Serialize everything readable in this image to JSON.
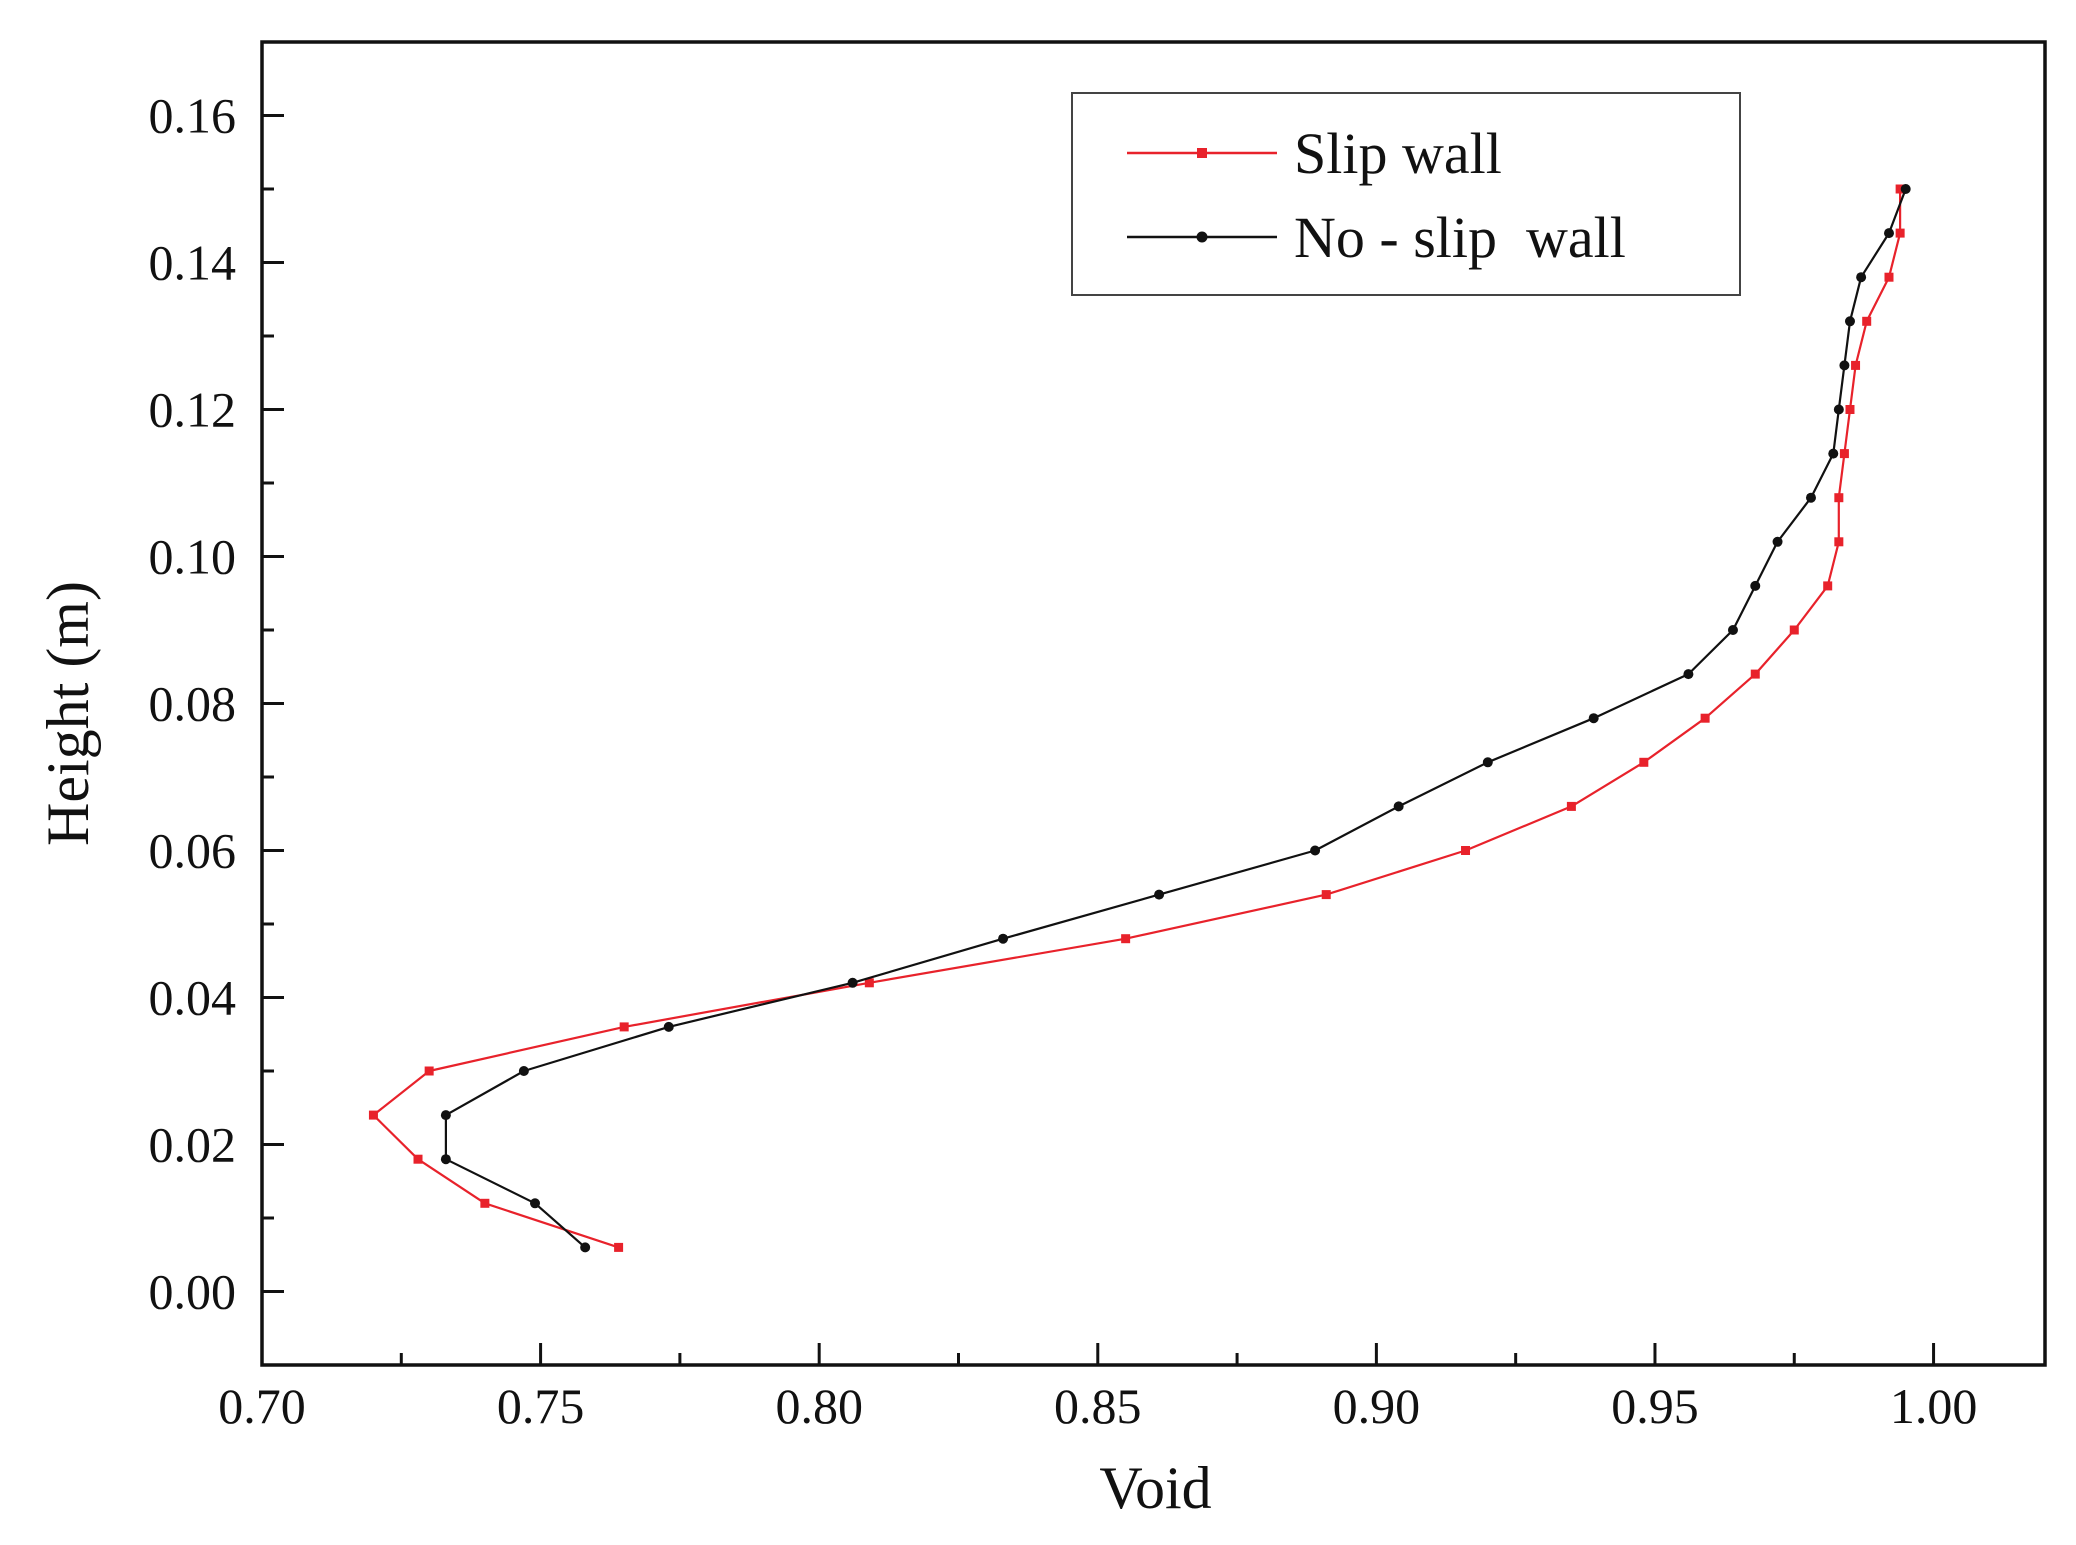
{
  "chart_data": {
    "type": "line",
    "title": "",
    "xlabel": "Void",
    "ylabel": "Height (m)",
    "xlim": [
      0.7,
      1.02
    ],
    "ylim": [
      -0.01,
      0.17
    ],
    "xticks": [
      0.7,
      0.75,
      0.8,
      0.85,
      0.9,
      0.95,
      1.0
    ],
    "xtick_labels": [
      "0.70",
      "0.75",
      "0.80",
      "0.85",
      "0.90",
      "0.95",
      "1.00"
    ],
    "yticks": [
      0.0,
      0.02,
      0.04,
      0.06,
      0.08,
      0.1,
      0.12,
      0.14,
      0.16
    ],
    "ytick_labels": [
      "0.00",
      "0.02",
      "0.04",
      "0.06",
      "0.08",
      "0.10",
      "0.12",
      "0.14",
      "0.16"
    ],
    "grid": false,
    "legend_position": "top-right",
    "series": [
      {
        "name": "Slip wall",
        "color": "#e8222b",
        "marker": "square",
        "points": [
          {
            "x": 0.764,
            "y": 0.006
          },
          {
            "x": 0.74,
            "y": 0.012
          },
          {
            "x": 0.728,
            "y": 0.018
          },
          {
            "x": 0.72,
            "y": 0.024
          },
          {
            "x": 0.73,
            "y": 0.03
          },
          {
            "x": 0.765,
            "y": 0.036
          },
          {
            "x": 0.809,
            "y": 0.042
          },
          {
            "x": 0.855,
            "y": 0.048
          },
          {
            "x": 0.891,
            "y": 0.054
          },
          {
            "x": 0.916,
            "y": 0.06
          },
          {
            "x": 0.935,
            "y": 0.066
          },
          {
            "x": 0.948,
            "y": 0.072
          },
          {
            "x": 0.959,
            "y": 0.078
          },
          {
            "x": 0.968,
            "y": 0.084
          },
          {
            "x": 0.975,
            "y": 0.09
          },
          {
            "x": 0.981,
            "y": 0.096
          },
          {
            "x": 0.983,
            "y": 0.102
          },
          {
            "x": 0.983,
            "y": 0.108
          },
          {
            "x": 0.984,
            "y": 0.114
          },
          {
            "x": 0.985,
            "y": 0.12
          },
          {
            "x": 0.986,
            "y": 0.126
          },
          {
            "x": 0.988,
            "y": 0.132
          },
          {
            "x": 0.992,
            "y": 0.138
          },
          {
            "x": 0.994,
            "y": 0.144
          },
          {
            "x": 0.994,
            "y": 0.15
          }
        ]
      },
      {
        "name": "No - slip  wall",
        "color": "#111111",
        "marker": "circle",
        "points": [
          {
            "x": 0.758,
            "y": 0.006
          },
          {
            "x": 0.749,
            "y": 0.012
          },
          {
            "x": 0.733,
            "y": 0.018
          },
          {
            "x": 0.733,
            "y": 0.024
          },
          {
            "x": 0.747,
            "y": 0.03
          },
          {
            "x": 0.773,
            "y": 0.036
          },
          {
            "x": 0.806,
            "y": 0.042
          },
          {
            "x": 0.833,
            "y": 0.048
          },
          {
            "x": 0.861,
            "y": 0.054
          },
          {
            "x": 0.889,
            "y": 0.06
          },
          {
            "x": 0.904,
            "y": 0.066
          },
          {
            "x": 0.92,
            "y": 0.072
          },
          {
            "x": 0.939,
            "y": 0.078
          },
          {
            "x": 0.956,
            "y": 0.084
          },
          {
            "x": 0.964,
            "y": 0.09
          },
          {
            "x": 0.968,
            "y": 0.096
          },
          {
            "x": 0.972,
            "y": 0.102
          },
          {
            "x": 0.978,
            "y": 0.108
          },
          {
            "x": 0.982,
            "y": 0.114
          },
          {
            "x": 0.983,
            "y": 0.12
          },
          {
            "x": 0.984,
            "y": 0.126
          },
          {
            "x": 0.985,
            "y": 0.132
          },
          {
            "x": 0.987,
            "y": 0.138
          },
          {
            "x": 0.992,
            "y": 0.144
          },
          {
            "x": 0.995,
            "y": 0.15
          }
        ]
      }
    ]
  }
}
